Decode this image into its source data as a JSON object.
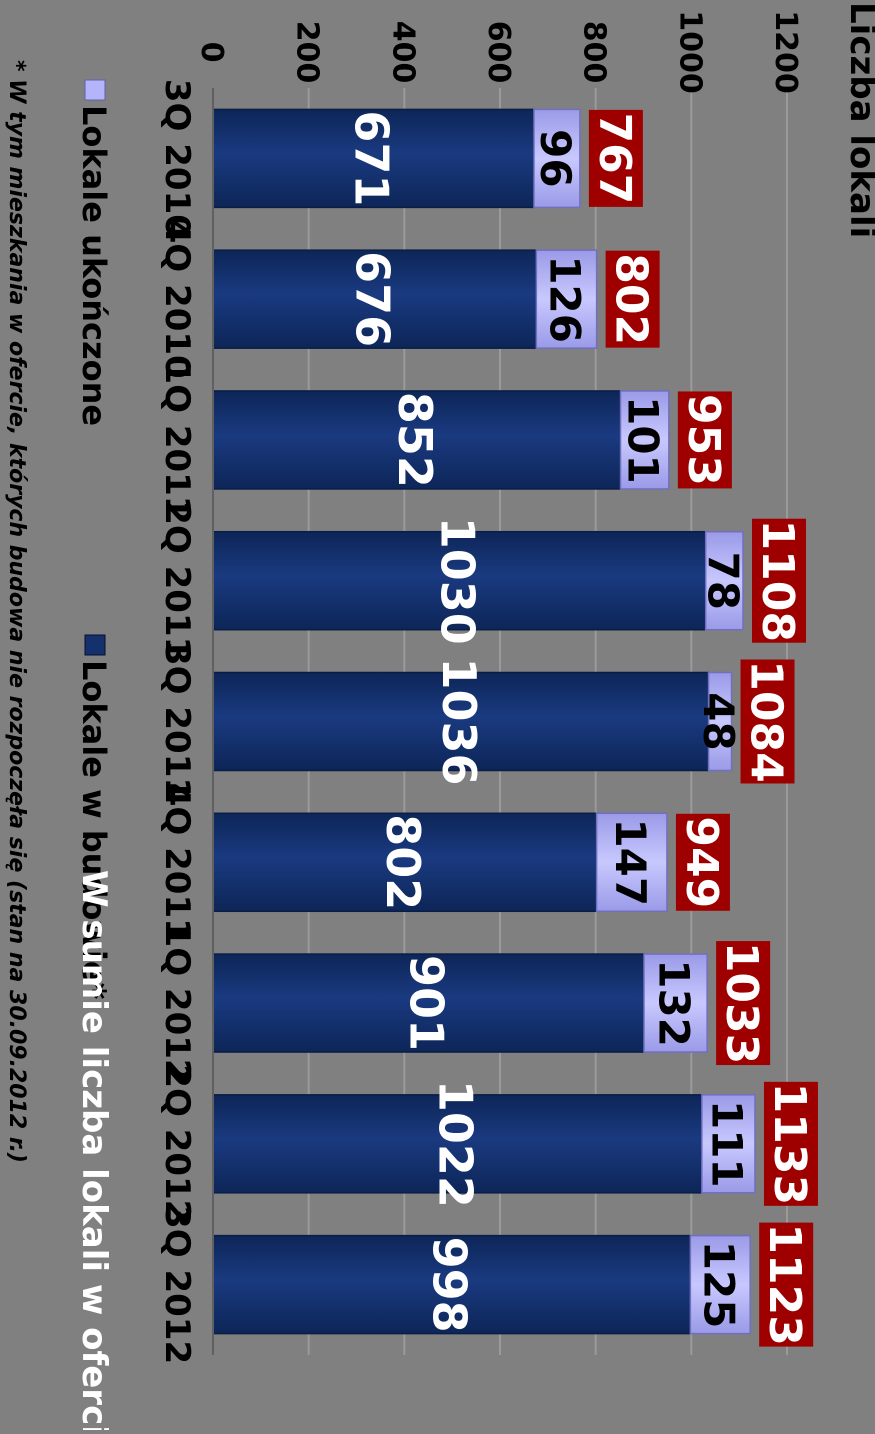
{
  "chart_data": {
    "type": "bar",
    "stacked": true,
    "orientation": "rotated-90-clockwise",
    "ylabel": "Liczba lokali",
    "ylim": [
      0,
      1200
    ],
    "yticks": [
      0,
      200,
      400,
      600,
      800,
      1000,
      1200
    ],
    "grid": true,
    "categories": [
      "3Q 2010",
      "4Q 2010",
      "1Q 2011",
      "2Q 2011",
      "3Q 2011",
      "4Q 2011",
      "1Q 2012",
      "2Q 2012",
      "3Q 2012"
    ],
    "series": [
      {
        "name": "Lokale w budowie*",
        "color": "#14316e",
        "values": [
          671,
          676,
          852,
          1030,
          1036,
          802,
          901,
          1022,
          998
        ]
      },
      {
        "name": "Lokale ukończone",
        "color": "#b4b4fa",
        "values": [
          96,
          126,
          101,
          78,
          48,
          147,
          132,
          111,
          125
        ]
      }
    ],
    "totals": [
      767,
      802,
      953,
      1108,
      1084,
      949,
      1033,
      1133,
      1123
    ],
    "totals_label": "W sumie liczba lokali w ofercie",
    "totals_color": "#9e0000",
    "legend_position": "bottom",
    "footnote": "* W tym mieszkania w ofercie, których budowa nie rozpoczęła się  (stan na 30.09.2012 r.)"
  }
}
